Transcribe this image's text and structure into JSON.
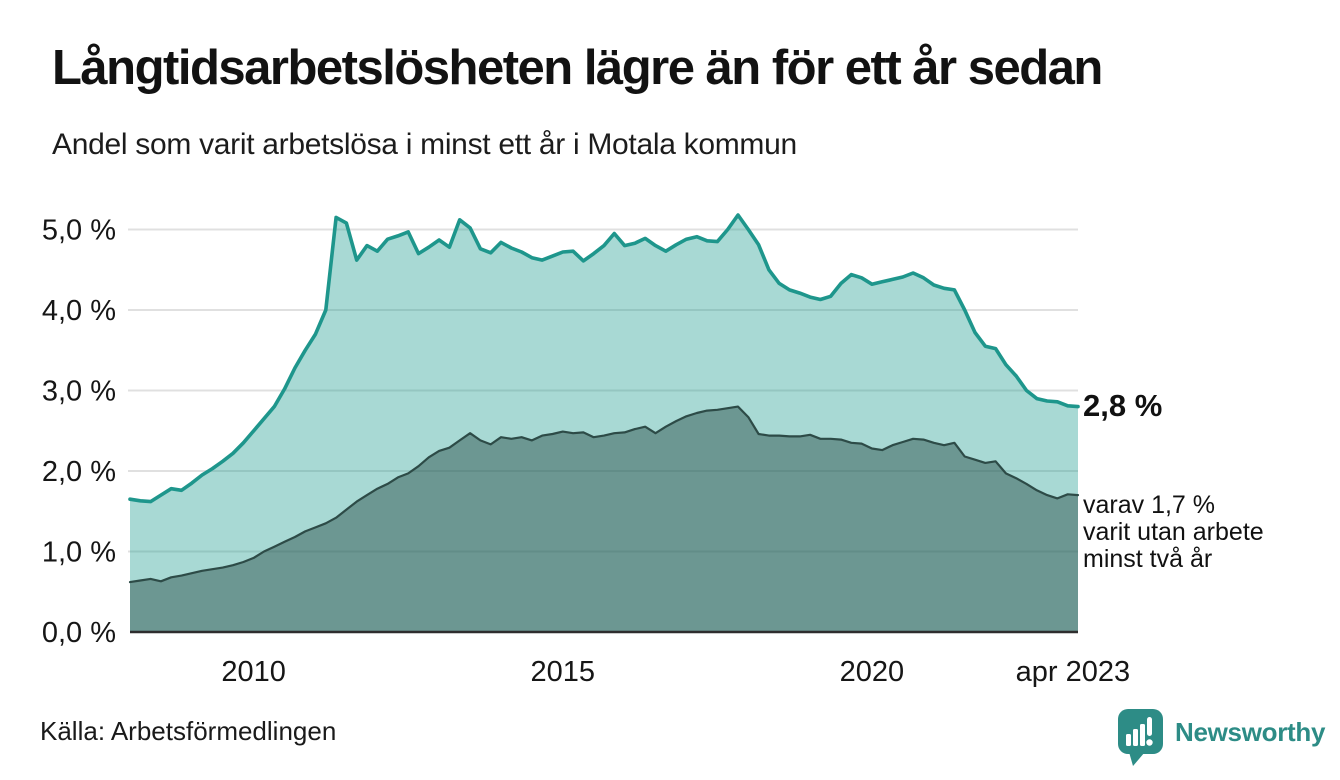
{
  "header": {
    "title": "Långtidsarbetslösheten lägre än för ett år sedan",
    "subtitle": "Andel som varit arbetslösa i minst ett år i Motala kommun"
  },
  "annotations": {
    "latest_total": "2,8 %",
    "detail_lines": [
      "varav 1,7 %",
      "varit utan arbete",
      "minst två år"
    ]
  },
  "footer": {
    "source": "Källa: Arbetsförmedlingen",
    "brand": "Newsworthy"
  },
  "colors": {
    "teal_line": "#1e968c",
    "light_fill": "rgba(26,154,142,0.38)",
    "dark_line": "#2d4b47",
    "dark_fill": "rgba(40,77,73,0.47)",
    "grid": "#e0e0e0",
    "baseline": "#2e2e2e",
    "brand_teal": "#2d8c86",
    "text": "#161616"
  },
  "chart_data": {
    "type": "area",
    "title": "Långtidsarbetslösheten lägre än för ett år sedan",
    "subtitle": "Andel som varit arbetslösa i minst ett år i Motala kommun",
    "xlabel": "",
    "ylabel": "",
    "unit": "%",
    "grid": "horizontal",
    "legend": "none",
    "xlim": [
      2008.0,
      2023.333
    ],
    "ylim": [
      0,
      5.3
    ],
    "x_start": 2008.0,
    "x_step": 0.166667,
    "x_ticks": [
      {
        "x": 2010,
        "label": "2010"
      },
      {
        "x": 2015,
        "label": "2015"
      },
      {
        "x": 2020,
        "label": "2020"
      },
      {
        "x": 2023.25,
        "label": "apr 2023"
      }
    ],
    "y_ticks": [
      {
        "v": 0,
        "label": "0,0 %"
      },
      {
        "v": 1,
        "label": "1,0 %"
      },
      {
        "v": 2,
        "label": "2,0 %"
      },
      {
        "v": 3,
        "label": "3,0 %"
      },
      {
        "v": 4,
        "label": "4,0 %"
      },
      {
        "v": 5,
        "label": "5,0 %"
      }
    ],
    "series": [
      {
        "name": "Andel som varit arbetslösa i minst ett år",
        "end_label": "2,8 %",
        "values": [
          1.65,
          1.63,
          1.62,
          1.7,
          1.78,
          1.76,
          1.85,
          1.95,
          2.03,
          2.12,
          2.22,
          2.35,
          2.5,
          2.65,
          2.8,
          3.02,
          3.28,
          3.5,
          3.7,
          4.0,
          5.15,
          5.08,
          4.62,
          4.8,
          4.73,
          4.88,
          4.92,
          4.97,
          4.7,
          4.78,
          4.87,
          4.78,
          5.12,
          5.02,
          4.76,
          4.71,
          4.84,
          4.77,
          4.72,
          4.65,
          4.62,
          4.67,
          4.72,
          4.73,
          4.61,
          4.7,
          4.8,
          4.95,
          4.8,
          4.83,
          4.89,
          4.8,
          4.73,
          4.81,
          4.88,
          4.91,
          4.86,
          4.85,
          5.0,
          5.18,
          5.0,
          4.81,
          4.5,
          4.33,
          4.25,
          4.21,
          4.16,
          4.13,
          4.17,
          4.33,
          4.44,
          4.4,
          4.32,
          4.35,
          4.38,
          4.41,
          4.46,
          4.4,
          4.31,
          4.27,
          4.25,
          4.0,
          3.72,
          3.55,
          3.52,
          3.32,
          3.18,
          3.0,
          2.9,
          2.87,
          2.86,
          2.81,
          2.8
        ]
      },
      {
        "name": "varav utan arbete minst två år",
        "end_label": "1,7 %",
        "values": [
          0.62,
          0.64,
          0.66,
          0.63,
          0.68,
          0.7,
          0.73,
          0.76,
          0.78,
          0.8,
          0.83,
          0.87,
          0.92,
          1.0,
          1.06,
          1.12,
          1.18,
          1.25,
          1.3,
          1.35,
          1.42,
          1.52,
          1.62,
          1.7,
          1.78,
          1.84,
          1.92,
          1.97,
          2.06,
          2.17,
          2.25,
          2.29,
          2.38,
          2.47,
          2.38,
          2.33,
          2.42,
          2.4,
          2.42,
          2.38,
          2.44,
          2.46,
          2.49,
          2.47,
          2.48,
          2.42,
          2.44,
          2.47,
          2.48,
          2.52,
          2.55,
          2.47,
          2.55,
          2.62,
          2.68,
          2.72,
          2.75,
          2.76,
          2.78,
          2.8,
          2.67,
          2.46,
          2.44,
          2.44,
          2.43,
          2.43,
          2.45,
          2.4,
          2.4,
          2.39,
          2.35,
          2.34,
          2.28,
          2.26,
          2.32,
          2.36,
          2.4,
          2.39,
          2.35,
          2.32,
          2.35,
          2.18,
          2.14,
          2.1,
          2.12,
          1.97,
          1.91,
          1.84,
          1.76,
          1.7,
          1.66,
          1.71,
          1.7
        ]
      }
    ]
  }
}
